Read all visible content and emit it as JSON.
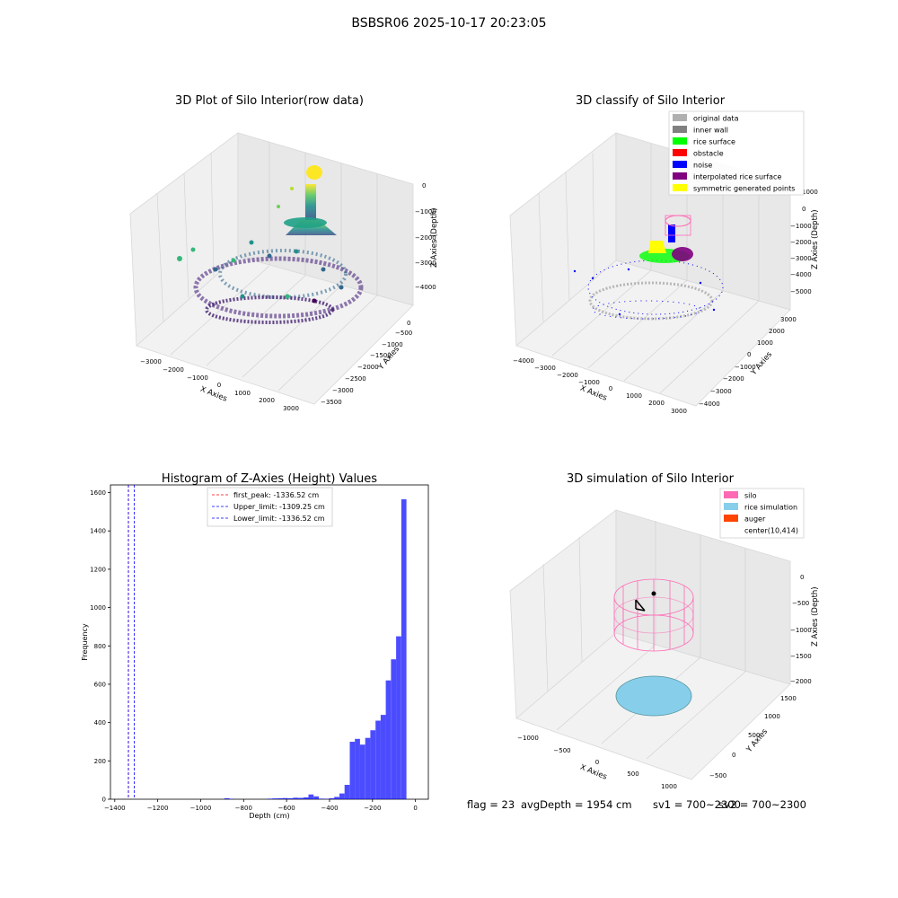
{
  "figure": {
    "suptitle": "BSBSR06 2025-10-17 20:23:05"
  },
  "status": {
    "flag": "flag = 23",
    "avg_depth": "avgDepth = 1954 cm",
    "sv1": "sv1 = 700~2300",
    "sv2": "sv2 = 700~2300"
  },
  "chart_data": [
    {
      "type": "scatter",
      "projection": "3d",
      "title": "3D Plot of Silo Interior(row data)",
      "xlabel": "X Axies",
      "ylabel": "Y Axies",
      "zlabel": "Z Axies (Depth)",
      "x_ticks": [
        "−3000",
        "−2000",
        "−1000",
        "0",
        "1000",
        "2000",
        "3000"
      ],
      "y_ticks": [
        "0",
        "−500",
        "−1000",
        "−1500",
        "−2000",
        "−2500",
        "−3000",
        "−3500"
      ],
      "z_ticks": [
        "0",
        "−1000",
        "−2000",
        "−3000",
        "−4000"
      ],
      "colormap": "viridis",
      "description": "point cloud of rice surface; bright yellow cluster at top near z≈0, green cone, purple ring at bottom"
    },
    {
      "type": "scatter",
      "projection": "3d",
      "title": "3D classify of Silo Interior",
      "xlabel": "X Axies",
      "ylabel": "Y Axies",
      "zlabel": "Z Axies (Depth)",
      "x_ticks": [
        "−4000",
        "−3000",
        "−2000",
        "−1000",
        "0",
        "1000",
        "2000",
        "3000"
      ],
      "y_ticks": [
        "3000",
        "2000",
        "1000",
        "0",
        "−1000",
        "−2000",
        "−3000",
        "−4000"
      ],
      "z_ticks": [
        "1000",
        "0",
        "−1000",
        "−2000",
        "−3000",
        "−4000",
        "−5000"
      ],
      "legend_position": "top-right",
      "legend": [
        {
          "label": "original data",
          "color": "#b0b0b0"
        },
        {
          "label": "inner wall",
          "color": "#808080"
        },
        {
          "label": "rice surface",
          "color": "#00ff00"
        },
        {
          "label": "obstacle",
          "color": "#ff0000"
        },
        {
          "label": "noise",
          "color": "#0000ff"
        },
        {
          "label": "interpolated rice surface",
          "color": "#800080"
        },
        {
          "label": "symmetric generated points",
          "color": "#ffff00"
        }
      ]
    },
    {
      "type": "bar",
      "title": "Histogram of Z-Axies (Height) Values",
      "xlabel": "Depth (cm)",
      "ylabel": "Frequency",
      "xlim": [
        -1420,
        60
      ],
      "ylim": [
        0,
        1640
      ],
      "x_ticks": [
        -1400,
        -1200,
        -1000,
        -800,
        -600,
        -400,
        -200,
        0
      ],
      "y_ticks": [
        0,
        200,
        400,
        600,
        800,
        1000,
        1200,
        1400,
        1600
      ],
      "bar_color": "#0000ff",
      "bins": [
        {
          "x0": -890,
          "x1": -866,
          "v": 5
        },
        {
          "x0": -866,
          "x1": -842,
          "v": 2
        },
        {
          "x0": -690,
          "x1": -666,
          "v": 3
        },
        {
          "x0": -666,
          "x1": -642,
          "v": 4
        },
        {
          "x0": -642,
          "x1": -618,
          "v": 5
        },
        {
          "x0": -618,
          "x1": -594,
          "v": 6
        },
        {
          "x0": -594,
          "x1": -570,
          "v": 5
        },
        {
          "x0": -570,
          "x1": -546,
          "v": 8
        },
        {
          "x0": -546,
          "x1": -522,
          "v": 7
        },
        {
          "x0": -522,
          "x1": -498,
          "v": 10
        },
        {
          "x0": -498,
          "x1": -474,
          "v": 25
        },
        {
          "x0": -474,
          "x1": -450,
          "v": 15
        },
        {
          "x0": -450,
          "x1": -426,
          "v": 3
        },
        {
          "x0": -426,
          "x1": -402,
          "v": 2
        },
        {
          "x0": -402,
          "x1": -378,
          "v": 5
        },
        {
          "x0": -378,
          "x1": -354,
          "v": 12
        },
        {
          "x0": -354,
          "x1": -330,
          "v": 30
        },
        {
          "x0": -330,
          "x1": -306,
          "v": 75
        },
        {
          "x0": -306,
          "x1": -282,
          "v": 300
        },
        {
          "x0": -282,
          "x1": -258,
          "v": 315
        },
        {
          "x0": -258,
          "x1": -234,
          "v": 285
        },
        {
          "x0": -234,
          "x1": -210,
          "v": 320
        },
        {
          "x0": -210,
          "x1": -186,
          "v": 360
        },
        {
          "x0": -186,
          "x1": -162,
          "v": 410
        },
        {
          "x0": -162,
          "x1": -138,
          "v": 440
        },
        {
          "x0": -138,
          "x1": -114,
          "v": 620
        },
        {
          "x0": -114,
          "x1": -90,
          "v": 730
        },
        {
          "x0": -90,
          "x1": -66,
          "v": 850
        },
        {
          "x0": -66,
          "x1": -42,
          "v": 1565
        },
        {
          "x0": -42,
          "x1": -18,
          "v": 0
        }
      ],
      "vlines": [
        {
          "label": "first_peak: -1336.52 cm",
          "x": -1336.52,
          "color": "#ff0000"
        },
        {
          "label": "Upper_limit: -1309.25 cm",
          "x": -1309.25,
          "color": "#0000ff"
        },
        {
          "label": "Lower_limit: -1336.52 cm",
          "x": -1336.52,
          "color": "#0000ff"
        }
      ],
      "legend_position": "top-center"
    },
    {
      "type": "scatter",
      "projection": "3d",
      "title": "3D simulation of Silo Interior",
      "xlabel": "X Axies",
      "ylabel": "Y Axies",
      "zlabel": "Z Axies (Depth)",
      "x_ticks": [
        "−1000",
        "−500",
        "0",
        "500",
        "1000"
      ],
      "y_ticks": [
        "1500",
        "1000",
        "500",
        "0",
        "−500"
      ],
      "z_ticks": [
        "0",
        "−500",
        "−1000",
        "−1500",
        "−2000"
      ],
      "legend_position": "top-right",
      "legend": [
        {
          "label": "silo",
          "color": "#ff69b4"
        },
        {
          "label": "rice simulation",
          "color": "#87ceeb"
        },
        {
          "label": "auger",
          "color": "#ff4500"
        },
        {
          "label": "center(10,414)",
          "color": ""
        }
      ]
    }
  ]
}
